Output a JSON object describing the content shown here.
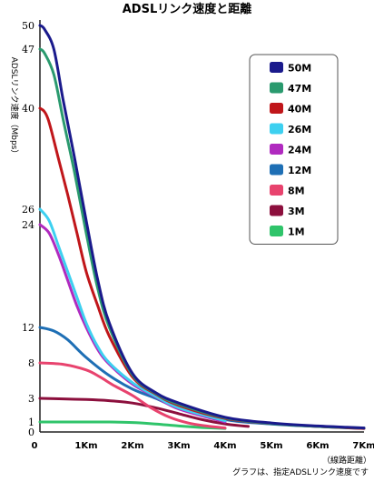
{
  "chart_data": {
    "type": "line",
    "title": "ADSLリンク速度と距離",
    "ylabel": "ADSLリンク速度（Mbps）",
    "xlabel": "（線路距離）",
    "footnote": "グラフは、指定ADSLリンク速度です",
    "x_ticks": [
      "0",
      "1Km",
      "2Km",
      "3Km",
      "4Km",
      "5Km",
      "6Km",
      "7Km"
    ],
    "y_ticks": [
      0,
      1,
      3,
      8,
      12,
      24,
      26,
      40,
      47,
      50
    ],
    "xlim": [
      0,
      7
    ],
    "legend_position": "top-right",
    "series": [
      {
        "name": "50M",
        "color": "#1a1a8c",
        "x": [
          0,
          0.1,
          0.3,
          0.5,
          0.75,
          1,
          1.25,
          1.5,
          2,
          2.5,
          3,
          4,
          5,
          6,
          7
        ],
        "y": [
          50,
          49.5,
          47,
          41,
          33,
          24.5,
          17.5,
          12.5,
          6.5,
          3.8,
          2.6,
          1.4,
          0.9,
          0.6,
          0.4
        ]
      },
      {
        "name": "47M",
        "color": "#2a9a6e",
        "x": [
          0,
          0.1,
          0.3,
          0.5,
          0.75,
          1,
          1.25,
          1.5,
          2,
          2.5,
          3,
          4,
          5,
          6,
          7
        ],
        "y": [
          47,
          46.5,
          44,
          38.5,
          31,
          23,
          16.5,
          12,
          6.3,
          3.7,
          2.5,
          1.35,
          0.85,
          0.55,
          0.4
        ]
      },
      {
        "name": "40M",
        "color": "#c0161a",
        "x": [
          0,
          0.1,
          0.2,
          0.4,
          0.6,
          0.8,
          1,
          1.25,
          1.5,
          2,
          2.5,
          3,
          4,
          5,
          6,
          7
        ],
        "y": [
          40,
          39.5,
          38,
          33,
          28,
          23,
          18.5,
          14.5,
          11,
          6,
          3.6,
          2.4,
          1.3,
          0.85,
          0.55,
          0.35
        ]
      },
      {
        "name": "26M",
        "color": "#3dd0f0",
        "x": [
          0,
          0.2,
          0.4,
          0.6,
          0.8,
          1,
          1.25,
          1.5,
          2,
          2.5,
          3,
          4
        ],
        "y": [
          26,
          24.5,
          21.5,
          18.5,
          15.5,
          12.5,
          9.8,
          8,
          5.2,
          3.3,
          2.2,
          1.1
        ]
      },
      {
        "name": "24M",
        "color": "#b02abf",
        "x": [
          0,
          0.2,
          0.4,
          0.6,
          0.8,
          1,
          1.25,
          1.5,
          2,
          2.5,
          3,
          4
        ],
        "y": [
          24,
          23,
          20.5,
          17.5,
          14.5,
          12,
          9.5,
          7.8,
          5,
          3.2,
          2.1,
          1
        ]
      },
      {
        "name": "12M",
        "color": "#1e6fb5",
        "x": [
          0,
          0.3,
          0.6,
          1,
          1.5,
          2,
          2.5,
          3,
          4,
          5,
          6,
          7
        ],
        "y": [
          12,
          11.6,
          10.6,
          8.6,
          6.2,
          4.3,
          3,
          2.2,
          1.2,
          0.8,
          0.55,
          0.35
        ]
      },
      {
        "name": "8M",
        "color": "#e8436e",
        "x": [
          0,
          0.5,
          1,
          1.3,
          1.6,
          2,
          2.4,
          2.8,
          3.2,
          3.6,
          4
        ],
        "y": [
          8,
          7.8,
          7,
          6,
          4.8,
          3.4,
          2.2,
          1.4,
          0.9,
          0.6,
          0.4
        ]
      },
      {
        "name": "3M",
        "color": "#8c0f3d",
        "x": [
          0,
          0.5,
          1,
          1.5,
          2,
          2.5,
          3,
          3.5,
          4,
          4.5
        ],
        "y": [
          3,
          2.95,
          2.9,
          2.8,
          2.6,
          2.2,
          1.7,
          1.2,
          0.8,
          0.55
        ]
      },
      {
        "name": "1M",
        "color": "#2fc46a",
        "x": [
          0,
          0.5,
          1,
          1.5,
          2,
          2.5,
          3,
          3.5,
          4
        ],
        "y": [
          1,
          1,
          1,
          1,
          0.95,
          0.8,
          0.6,
          0.45,
          0.35
        ]
      }
    ]
  }
}
